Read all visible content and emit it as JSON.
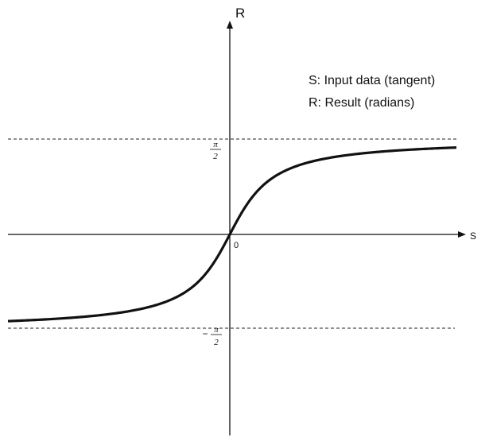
{
  "axes": {
    "y_label": "R",
    "x_label": "S",
    "origin": "0"
  },
  "legend": [
    "S: Input data (tangent)",
    "R: Result (radians)"
  ],
  "ticks": {
    "upper": {
      "numerator": "π",
      "denominator": "2"
    },
    "lower": {
      "sign": "−",
      "numerator": "π",
      "denominator": "2"
    }
  }
}
